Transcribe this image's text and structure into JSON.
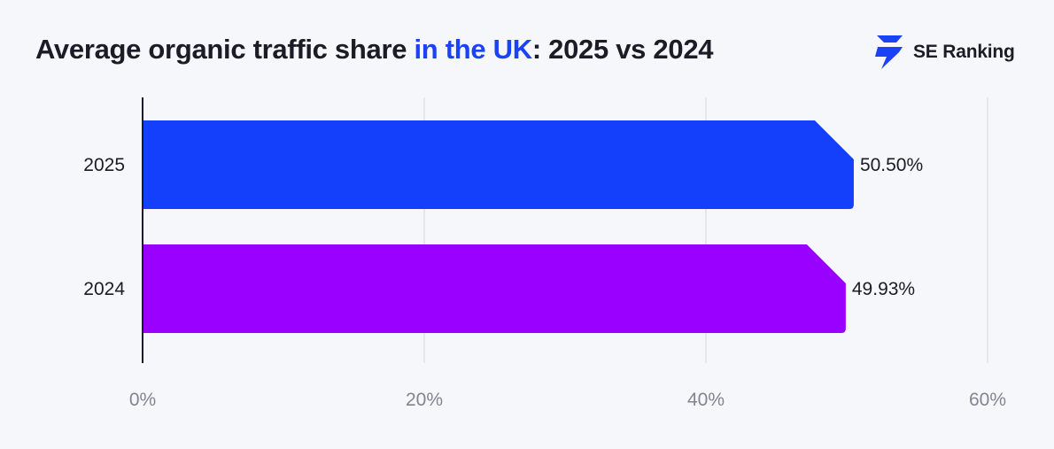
{
  "header": {
    "title_prefix": "Average organic traffic share ",
    "title_highlight": "in the UK",
    "title_suffix": ": 2025 vs 2024",
    "highlight_color": "#1b43f5"
  },
  "brand": {
    "name": "SE Ranking",
    "icon": "se-ranking-logo-icon",
    "color": "#1b43f5"
  },
  "chart_data": {
    "type": "bar",
    "orientation": "horizontal",
    "categories": [
      "2025",
      "2024"
    ],
    "values": [
      50.5,
      49.93
    ],
    "value_labels": [
      "50.50%",
      "49.93%"
    ],
    "colors": [
      "#1540fb",
      "#9900ff"
    ],
    "xlim": [
      0,
      60
    ],
    "xticks": [
      0,
      20,
      40,
      60
    ],
    "xtick_labels": [
      "0%",
      "20%",
      "40%",
      "60%"
    ],
    "grid": "vertical",
    "legend": "none",
    "title": "Average organic traffic share in the UK: 2025 vs 2024"
  }
}
